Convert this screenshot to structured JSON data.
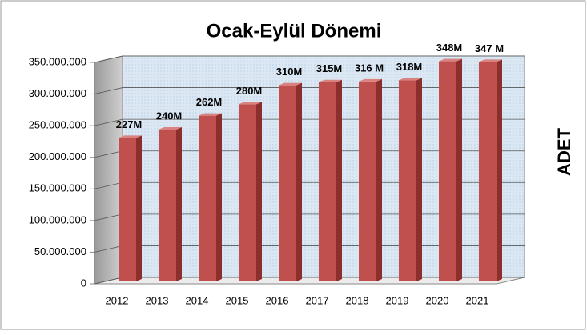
{
  "chart_data": {
    "type": "bar3d",
    "title": "Ocak-Eylül Dönemi",
    "y_label": "ADET",
    "categories": [
      "2012",
      "2013",
      "2014",
      "2015",
      "2016",
      "2017",
      "2018",
      "2019",
      "2020",
      "2021"
    ],
    "values": [
      227000000,
      240000000,
      262000000,
      280000000,
      310000000,
      315000000,
      316000000,
      318000000,
      348000000,
      347000000
    ],
    "value_labels": [
      "227M",
      "240M",
      "262M",
      "280M",
      "310M",
      "315M",
      "316 M",
      "318M",
      "348M",
      "347 M"
    ],
    "color": "#c0504d",
    "ylim": [
      0,
      350000000
    ],
    "yticks": [
      0,
      {
        "value": 50000000,
        "label": "50.000.000"
      },
      {
        "value": 100000000,
        "label": "100.000.000"
      },
      {
        "value": 150000000,
        "label": "150.000.000"
      },
      {
        "value": 200000000,
        "label": "200.000.000"
      },
      {
        "value": 250000000,
        "label": "250.000.000"
      },
      {
        "value": 300000000,
        "label": "300.000.000"
      },
      {
        "value": 350000000,
        "label": "350.000.000"
      }
    ],
    "grid": true
  }
}
